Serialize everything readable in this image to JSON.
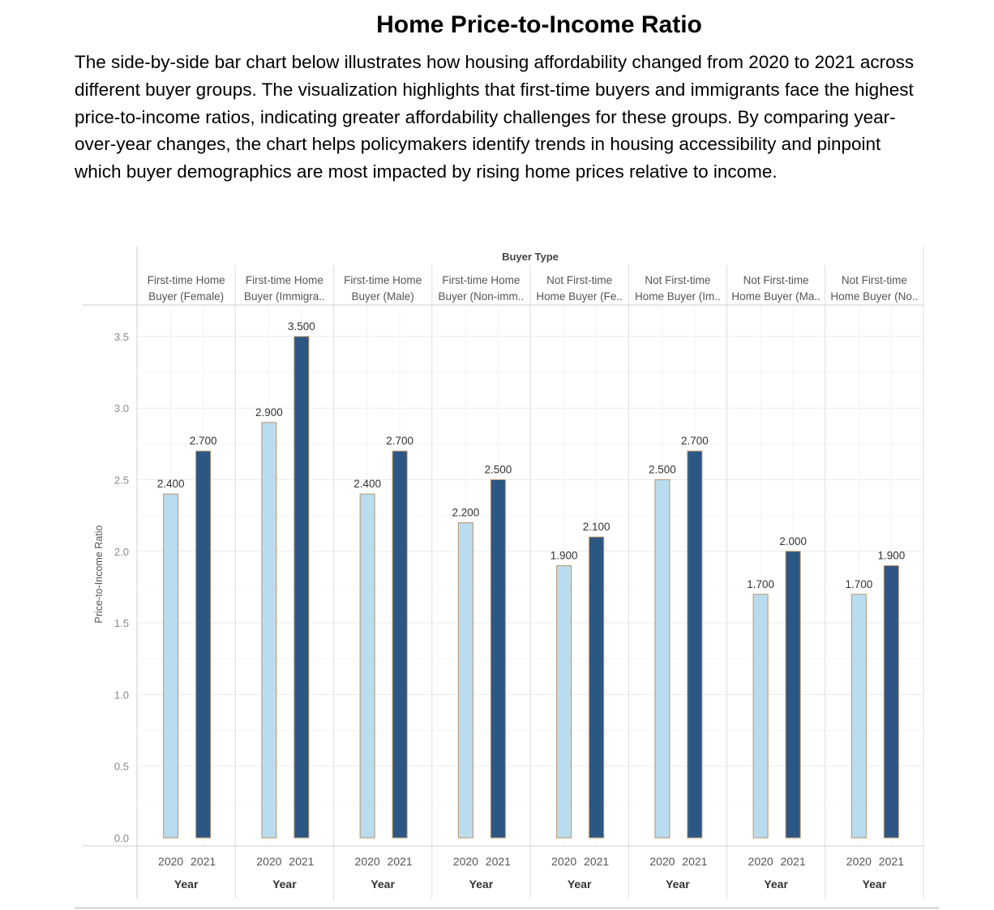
{
  "document": {
    "title": "Home Price-to-Income Ratio",
    "body": "The side-by-side bar chart below illustrates how housing affordability changed from 2020 to 2021 across different buyer groups. The visualization highlights that first-time buyers and immigrants face the highest price-to-income ratios, indicating greater affordability challenges for these groups. By comparing year-over-year changes, the chart helps policymakers identify trends in housing accessibility and pinpoint which buyer demographics are most impacted by rising home prices relative to income."
  },
  "chart_data": {
    "type": "bar",
    "title": "",
    "header_label": "Buyer Type",
    "ylabel": "Price-to-Income Ratio",
    "xlabel": "Year",
    "ylim": [
      0,
      3.75
    ],
    "yticks": [
      "0.0",
      "0.5",
      "1.0",
      "1.5",
      "2.0",
      "2.5",
      "3.0",
      "3.5"
    ],
    "grid": true,
    "colors": {
      "2020": "#b9dcef",
      "2021": "#2c5683",
      "bar_border": "#b8956a"
    },
    "groups": [
      {
        "label_lines": [
          "First-time Home",
          "Buyer (Female)"
        ],
        "years": [
          "2020",
          "2021"
        ],
        "values": [
          2.4,
          2.7
        ],
        "value_labels": [
          "2.400",
          "2.700"
        ]
      },
      {
        "label_lines": [
          "First-time Home",
          "Buyer (Immigra.."
        ],
        "years": [
          "2020",
          "2021"
        ],
        "values": [
          2.9,
          3.5
        ],
        "value_labels": [
          "2.900",
          "3.500"
        ]
      },
      {
        "label_lines": [
          "First-time Home",
          "Buyer (Male)"
        ],
        "years": [
          "2020",
          "2021"
        ],
        "values": [
          2.4,
          2.7
        ],
        "value_labels": [
          "2.400",
          "2.700"
        ]
      },
      {
        "label_lines": [
          "First-time Home",
          "Buyer (Non-imm.."
        ],
        "years": [
          "2020",
          "2021"
        ],
        "values": [
          2.2,
          2.5
        ],
        "value_labels": [
          "2.200",
          "2.500"
        ]
      },
      {
        "label_lines": [
          "Not First-time",
          "Home Buyer (Fe.."
        ],
        "years": [
          "2020",
          "2021"
        ],
        "values": [
          1.9,
          2.1
        ],
        "value_labels": [
          "1.900",
          "2.100"
        ]
      },
      {
        "label_lines": [
          "Not First-time",
          "Home Buyer (Im.."
        ],
        "years": [
          "2020",
          "2021"
        ],
        "values": [
          2.5,
          2.7
        ],
        "value_labels": [
          "2.500",
          "2.700"
        ]
      },
      {
        "label_lines": [
          "Not First-time",
          "Home Buyer (Ma.."
        ],
        "years": [
          "2020",
          "2021"
        ],
        "values": [
          1.7,
          2.0
        ],
        "value_labels": [
          "1.700",
          "2.000"
        ]
      },
      {
        "label_lines": [
          "Not First-time",
          "Home Buyer (No.."
        ],
        "years": [
          "2020",
          "2021"
        ],
        "values": [
          1.7,
          1.9
        ],
        "value_labels": [
          "1.700",
          "1.900"
        ]
      }
    ]
  }
}
